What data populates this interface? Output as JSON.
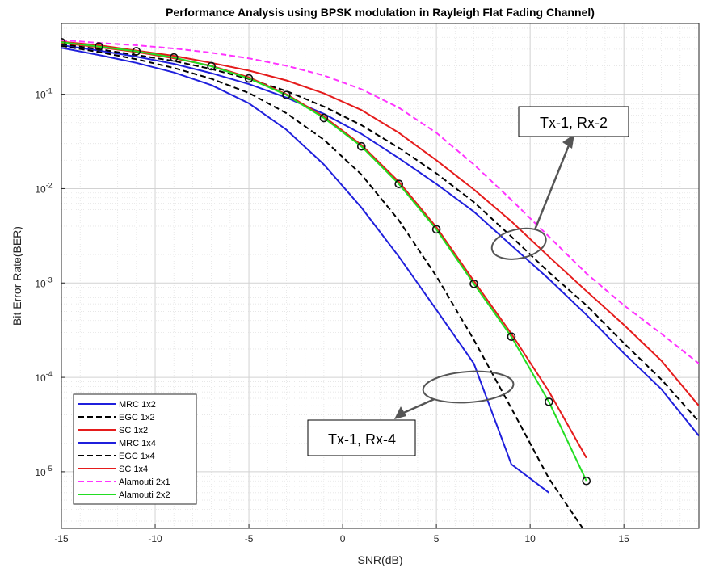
{
  "chart_data": {
    "type": "line",
    "title": "Performance Analysis using BPSK modulation in Rayleigh Flat Fading Channel)",
    "xlabel": "SNR(dB)",
    "ylabel": "Bit Error Rate(BER)",
    "xlim": [
      -15,
      19
    ],
    "ylim_log10": [
      -5.6,
      -0.25
    ],
    "y_scale": "log",
    "grid": true,
    "minor_grid": true,
    "legend_position": "bottom-left",
    "x_ticks": [
      -15,
      -10,
      -5,
      0,
      5,
      10,
      15
    ],
    "x_tick_labels": [
      "-15",
      "-10",
      "-5",
      "0",
      "5",
      "10",
      "15"
    ],
    "y_ticks_exp": [
      -1,
      -2,
      -3,
      -4,
      -5
    ],
    "y_tick_labels": [
      {
        "base": "10",
        "exp": "-1"
      },
      {
        "base": "10",
        "exp": "-2"
      },
      {
        "base": "10",
        "exp": "-3"
      },
      {
        "base": "10",
        "exp": "-4"
      },
      {
        "base": "10",
        "exp": "-5"
      }
    ],
    "series": [
      {
        "name": "MRC 1x2",
        "color": "#1f1fdc",
        "dash": "solid",
        "marker": "none",
        "x": [
          -15,
          -13,
          -11,
          -9,
          -7,
          -5,
          -3,
          -1,
          1,
          3,
          5,
          7,
          9,
          11,
          13,
          15,
          17,
          19
        ],
        "y": [
          0.33,
          0.29,
          0.25,
          0.21,
          0.167,
          0.128,
          0.092,
          0.062,
          0.038,
          0.021,
          0.0112,
          0.0057,
          0.0025,
          0.0011,
          0.00046,
          0.00018,
          7.5e-05,
          2.4e-05
        ]
      },
      {
        "name": "EGC 1x2",
        "color": "#000000",
        "dash": "dashed",
        "marker": "none",
        "x": [
          -15,
          -13,
          -11,
          -9,
          -7,
          -5,
          -3,
          -1,
          1,
          3,
          5,
          7,
          9,
          11,
          13,
          15,
          17,
          19
        ],
        "y": [
          0.34,
          0.3,
          0.26,
          0.225,
          0.185,
          0.145,
          0.108,
          0.074,
          0.047,
          0.027,
          0.0145,
          0.0072,
          0.0031,
          0.0013,
          0.00058,
          0.00023,
          9.5e-05,
          3.4e-05
        ]
      },
      {
        "name": "SC 1x2",
        "color": "#e51b1b",
        "dash": "solid",
        "marker": "none",
        "x": [
          -15,
          -13,
          -11,
          -9,
          -7,
          -5,
          -3,
          -1,
          1,
          3,
          5,
          7,
          9,
          11,
          13,
          15,
          17,
          19
        ],
        "y": [
          0.36,
          0.33,
          0.29,
          0.255,
          0.215,
          0.178,
          0.14,
          0.102,
          0.068,
          0.039,
          0.02,
          0.0098,
          0.0045,
          0.0019,
          0.00082,
          0.00036,
          0.00015,
          5e-05
        ]
      },
      {
        "name": "MRC 1x4",
        "color": "#1f1fdc",
        "dash": "solid",
        "marker": "none",
        "x": [
          -15,
          -13,
          -11,
          -9,
          -7,
          -5,
          -3,
          -1,
          1,
          3,
          5,
          7,
          9,
          11
        ],
        "y": [
          0.31,
          0.26,
          0.215,
          0.17,
          0.125,
          0.08,
          0.042,
          0.018,
          0.0063,
          0.0019,
          0.00052,
          0.00014,
          1.2e-05,
          6e-06
        ]
      },
      {
        "name": "EGC 1x4",
        "color": "#000000",
        "dash": "dashed",
        "marker": "none",
        "x": [
          -15,
          -13,
          -11,
          -9,
          -7,
          -5,
          -3,
          -1,
          1,
          3,
          5,
          7,
          9,
          11,
          13
        ],
        "y": [
          0.325,
          0.28,
          0.235,
          0.19,
          0.146,
          0.103,
          0.063,
          0.033,
          0.0141,
          0.0046,
          0.00118,
          0.00025,
          4.7e-05,
          8.5e-06,
          2.2e-06
        ]
      },
      {
        "name": "SC 1x4",
        "color": "#e51b1b",
        "dash": "solid",
        "marker": "none",
        "x": [
          -15,
          -13,
          -11,
          -9,
          -7,
          -5,
          -3,
          -1,
          1,
          3,
          5,
          7,
          9,
          11,
          13
        ],
        "y": [
          0.35,
          0.315,
          0.28,
          0.24,
          0.2,
          0.151,
          0.1,
          0.058,
          0.029,
          0.0118,
          0.0039,
          0.00105,
          0.00029,
          7.1e-05,
          1.4e-05
        ]
      },
      {
        "name": "Alamouti 2x1",
        "color": "#ff33ff",
        "dash": "dashed",
        "marker": "none",
        "x": [
          -15,
          -13,
          -11,
          -9,
          -7,
          -5,
          -3,
          -1,
          1,
          3,
          5,
          7,
          9,
          11,
          13,
          15,
          17,
          19
        ],
        "y": [
          0.375,
          0.35,
          0.33,
          0.305,
          0.275,
          0.24,
          0.2,
          0.158,
          0.113,
          0.072,
          0.039,
          0.018,
          0.0076,
          0.0031,
          0.00126,
          0.00058,
          0.00029,
          0.00014
        ]
      },
      {
        "name": "Alamouti 2x2",
        "color": "#22dd22",
        "dash": "solid",
        "marker": "circle",
        "x": [
          -15,
          -13,
          -11,
          -9,
          -7,
          -5,
          -3,
          -1,
          1,
          3,
          5,
          7,
          9,
          11,
          13
        ],
        "y": [
          0.355,
          0.32,
          0.285,
          0.245,
          0.198,
          0.147,
          0.098,
          0.056,
          0.028,
          0.0112,
          0.0037,
          0.00098,
          0.00027,
          5.5e-05,
          8e-06
        ]
      }
    ],
    "annotations": [
      {
        "text": "Tx-1, Rx-2",
        "target_x": 9.4,
        "target_y": 0.0026
      },
      {
        "text": "Tx-1, Rx-4",
        "target_x": 6.7,
        "target_y": 7.9e-05
      }
    ]
  }
}
